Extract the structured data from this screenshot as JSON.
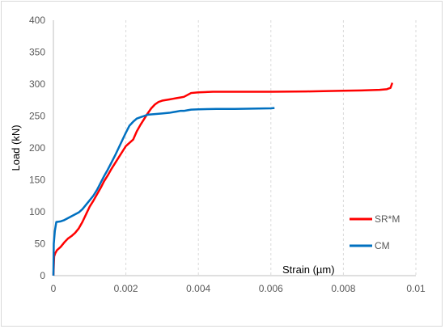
{
  "chart_data": {
    "type": "line",
    "title": "",
    "xlabel": "Strain (µm)",
    "ylabel": "Load (kN)",
    "xlim": [
      0,
      0.01
    ],
    "ylim": [
      0,
      400
    ],
    "xticks": [
      "0",
      "0.002",
      "0.004",
      "0.006",
      "0.008",
      "0.01"
    ],
    "yticks": [
      "0",
      "50",
      "100",
      "150",
      "200",
      "250",
      "300",
      "350",
      "400"
    ],
    "xtick_values": [
      0,
      0.002,
      0.004,
      0.006,
      0.008,
      0.01
    ],
    "ytick_values": [
      0,
      50,
      100,
      150,
      200,
      250,
      300,
      350,
      400
    ],
    "grid": "vertical",
    "legend_position": "right",
    "series": [
      {
        "name": "SR*M",
        "color": "#ff0000",
        "points": [
          [
            0,
            0
          ],
          [
            2e-05,
            30
          ],
          [
            5e-05,
            35
          ],
          [
            0.0001,
            40
          ],
          [
            0.0002,
            45
          ],
          [
            0.0003,
            52
          ],
          [
            0.0004,
            58
          ],
          [
            0.0005,
            62
          ],
          [
            0.0006,
            67
          ],
          [
            0.0007,
            74
          ],
          [
            0.0008,
            84
          ],
          [
            0.0009,
            96
          ],
          [
            0.001,
            108
          ],
          [
            0.0011,
            117
          ],
          [
            0.0012,
            127
          ],
          [
            0.0013,
            137
          ],
          [
            0.0014,
            148
          ],
          [
            0.0015,
            157
          ],
          [
            0.0016,
            167
          ],
          [
            0.0017,
            176
          ],
          [
            0.0018,
            185
          ],
          [
            0.0019,
            194
          ],
          [
            0.002,
            203
          ],
          [
            0.0021,
            208
          ],
          [
            0.0022,
            213
          ],
          [
            0.0023,
            226
          ],
          [
            0.0024,
            236
          ],
          [
            0.0025,
            245
          ],
          [
            0.0026,
            254
          ],
          [
            0.0027,
            262
          ],
          [
            0.0028,
            268
          ],
          [
            0.0029,
            272
          ],
          [
            0.003,
            274
          ],
          [
            0.0031,
            275
          ],
          [
            0.0032,
            276
          ],
          [
            0.0033,
            277
          ],
          [
            0.0034,
            278
          ],
          [
            0.0035,
            279
          ],
          [
            0.0036,
            280
          ],
          [
            0.0037,
            283
          ],
          [
            0.0038,
            286
          ],
          [
            0.004,
            287
          ],
          [
            0.0044,
            288
          ],
          [
            0.005,
            288
          ],
          [
            0.006,
            288
          ],
          [
            0.007,
            288.5
          ],
          [
            0.008,
            289.5
          ],
          [
            0.0085,
            290
          ],
          [
            0.009,
            291
          ],
          [
            0.0092,
            292
          ],
          [
            0.0093,
            294
          ],
          [
            0.00935,
            302
          ]
        ]
      },
      {
        "name": "CM",
        "color": "#0070c0",
        "points": [
          [
            0,
            0
          ],
          [
            1e-05,
            50
          ],
          [
            4e-05,
            70
          ],
          [
            8e-05,
            84
          ],
          [
            0.0002,
            85
          ],
          [
            0.0003,
            87
          ],
          [
            0.0004,
            90
          ],
          [
            0.0005,
            93
          ],
          [
            0.0006,
            96
          ],
          [
            0.0007,
            99
          ],
          [
            0.0008,
            104
          ],
          [
            0.0009,
            111
          ],
          [
            0.001,
            118
          ],
          [
            0.0011,
            125
          ],
          [
            0.0012,
            134
          ],
          [
            0.0013,
            145
          ],
          [
            0.0014,
            156
          ],
          [
            0.0015,
            166
          ],
          [
            0.0016,
            177
          ],
          [
            0.0017,
            188
          ],
          [
            0.0018,
            200
          ],
          [
            0.0019,
            212
          ],
          [
            0.002,
            224
          ],
          [
            0.0021,
            235
          ],
          [
            0.0022,
            241
          ],
          [
            0.0023,
            246
          ],
          [
            0.0024,
            248
          ],
          [
            0.0025,
            250
          ],
          [
            0.0026,
            252
          ],
          [
            0.0028,
            253
          ],
          [
            0.003,
            254
          ],
          [
            0.0032,
            255
          ],
          [
            0.0033,
            256
          ],
          [
            0.0034,
            257
          ],
          [
            0.0035,
            258
          ],
          [
            0.0036,
            258
          ],
          [
            0.0037,
            259
          ],
          [
            0.0038,
            260
          ],
          [
            0.004,
            260.5
          ],
          [
            0.0045,
            261
          ],
          [
            0.005,
            261
          ],
          [
            0.0055,
            261.5
          ],
          [
            0.006,
            262
          ],
          [
            0.0061,
            262.5
          ]
        ]
      }
    ]
  }
}
